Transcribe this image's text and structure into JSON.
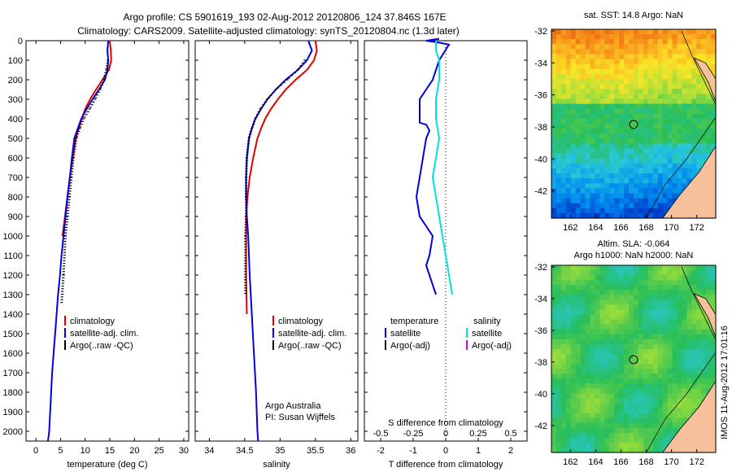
{
  "header": {
    "line1": "Argo profile: CS 5901619_193 02-Aug-2012 20120806_124 37.846S 167E",
    "line2": "Climatology: CARS2009. Satellite-adjusted climatology: synTS_20120804.nc (1.3d later)"
  },
  "side_stamp": "IMOS 11-Aug-2012 17:01:16",
  "chart_data": [
    {
      "type": "line",
      "id": "temperature-panel",
      "xlabel": "temperature (deg C)",
      "ylabel": "",
      "xlim": [
        -2,
        31
      ],
      "ylim": [
        2050,
        0
      ],
      "xticks": [
        0,
        5,
        10,
        15,
        20,
        25,
        30
      ],
      "yticks": [
        0,
        100,
        200,
        300,
        400,
        500,
        600,
        700,
        800,
        900,
        1000,
        1100,
        1200,
        1300,
        1400,
        1500,
        1600,
        1700,
        1800,
        1900,
        2000
      ],
      "legend": {
        "placement": "lower-center",
        "entries": [
          {
            "label": "climatology",
            "color": "#e00000"
          },
          {
            "label": "satellite-adj. clim.",
            "color": "#0000e0"
          },
          {
            "label": "Argo(..raw -QC)",
            "color": "#000000"
          }
        ]
      },
      "series": [
        {
          "name": "climatology",
          "color": "#e00000",
          "x": [
            15.0,
            15.2,
            15.3,
            14.8,
            13.5,
            12.2,
            11.0,
            10.0,
            9.3,
            8.7,
            8.1,
            7.5,
            6.9,
            6.4,
            5.9,
            5.4
          ],
          "y": [
            0,
            50,
            100,
            150,
            200,
            250,
            300,
            350,
            400,
            450,
            500,
            600,
            700,
            800,
            900,
            1000
          ]
        },
        {
          "name": "satellite-adj. clim.",
          "color": "#0000e0",
          "x": [
            14.7,
            14.6,
            14.5,
            14.7,
            14.5,
            14.0,
            12.8,
            11.5,
            10.3,
            9.2,
            8.5,
            7.8,
            7.3,
            6.9,
            6.4,
            6.0,
            5.6,
            5.2,
            4.9,
            4.5,
            4.2,
            3.9,
            3.6,
            3.3,
            3.1,
            2.9,
            2.7,
            2.6,
            2.5,
            2.4
          ],
          "y": [
            0,
            25,
            50,
            100,
            150,
            200,
            250,
            300,
            350,
            400,
            450,
            500,
            600,
            700,
            800,
            900,
            1000,
            1100,
            1200,
            1300,
            1400,
            1500,
            1600,
            1700,
            1800,
            1900,
            2000,
            2020,
            2040,
            2050
          ]
        },
        {
          "name": "Argo(..raw -QC)",
          "color": "#000000",
          "x": [
            14.6,
            14.3,
            13.8,
            13.0,
            12.0,
            10.9,
            9.7,
            8.9,
            8.2,
            7.6,
            7.2,
            6.8,
            6.4,
            6.0,
            5.6,
            5.2
          ],
          "y": [
            100,
            150,
            200,
            250,
            300,
            350,
            400,
            450,
            500,
            600,
            700,
            800,
            900,
            1000,
            1200,
            1350
          ]
        }
      ]
    },
    {
      "type": "line",
      "id": "salinity-panel",
      "xlabel": "salinity",
      "ylabel": "",
      "xlim": [
        33.8,
        36.1
      ],
      "ylim": [
        2050,
        0
      ],
      "xticks": [
        34,
        34.5,
        35,
        35.5,
        36
      ],
      "legend": {
        "placement": "lower-center",
        "entries": [
          {
            "label": "climatology",
            "color": "#e00000"
          },
          {
            "label": "satellite-adj. clim.",
            "color": "#0000e0"
          },
          {
            "label": "Argo(..raw -QC)",
            "color": "#000000"
          }
        ]
      },
      "annotation": [
        "Argo Australia",
        "PI: Susan Wijffels"
      ],
      "series": [
        {
          "name": "climatology",
          "color": "#e00000",
          "x": [
            35.5,
            35.52,
            35.48,
            35.38,
            35.22,
            35.08,
            34.97,
            34.87,
            34.79,
            34.73,
            34.68,
            34.62,
            34.57,
            34.54,
            34.52,
            34.52,
            34.52,
            34.53
          ],
          "y": [
            0,
            50,
            100,
            150,
            200,
            250,
            300,
            350,
            400,
            450,
            500,
            600,
            700,
            800,
            900,
            1000,
            1200,
            1400
          ]
        },
        {
          "name": "satellite-adj. clim.",
          "color": "#0000e0",
          "x": [
            35.4,
            35.45,
            35.38,
            35.25,
            35.08,
            34.94,
            34.82,
            34.73,
            34.65,
            34.6,
            34.56,
            34.53,
            34.52,
            34.52,
            34.53,
            34.55,
            34.57,
            34.6,
            34.63,
            34.66,
            34.68,
            34.69
          ],
          "y": [
            0,
            50,
            100,
            150,
            200,
            250,
            300,
            350,
            400,
            450,
            500,
            600,
            700,
            800,
            900,
            1000,
            1200,
            1400,
            1600,
            1800,
            2000,
            2050
          ]
        },
        {
          "name": "Argo(..raw -QC)",
          "color": "#000000",
          "x": [
            35.35,
            35.25,
            35.1,
            34.94,
            34.82,
            34.72,
            34.65,
            34.6,
            34.56,
            34.53,
            34.52,
            34.52,
            34.52,
            34.51,
            34.51
          ],
          "y": [
            100,
            150,
            200,
            250,
            300,
            350,
            400,
            450,
            500,
            600,
            700,
            800,
            900,
            1000,
            1300
          ]
        }
      ]
    },
    {
      "type": "line",
      "id": "difference-panel",
      "xlabel": "T difference from climatology",
      "top_axis_label": "S difference from climatology",
      "xlim": [
        -2.5,
        2.5
      ],
      "ylim": [
        2050,
        0
      ],
      "xticks_bottom": [
        {
          "v": -2,
          "t": "-2"
        },
        {
          "v": -1,
          "t": "-1"
        },
        {
          "v": 0,
          "t": "0"
        },
        {
          "v": 1,
          "t": "1"
        },
        {
          "v": 2,
          "t": "2"
        }
      ],
      "xticks_top": [
        {
          "v": -2,
          "t": "-0.5"
        },
        {
          "v": -1,
          "t": "-0.25"
        },
        {
          "v": 0,
          "t": "0"
        },
        {
          "v": 1,
          "t": "0.25"
        },
        {
          "v": 2,
          "t": "0.5"
        }
      ],
      "zero_line": 0,
      "legend": {
        "placement": "lower-center",
        "headers": [
          "temperature",
          "salinity"
        ],
        "entries": [
          {
            "label": "satellite",
            "color": "#0000e0"
          },
          {
            "label": "Argo(-adj)",
            "color": "#000000"
          },
          {
            "label": "satellite",
            "color": "#00e0e0"
          },
          {
            "label": "Argo(-adj)",
            "color": "#e000e0"
          }
        ]
      },
      "series": [
        {
          "name": "temperature satellite",
          "color": "#0000e0",
          "x": [
            -0.3,
            -0.4,
            -0.5,
            -0.6,
            -0.5,
            -0.4,
            -0.8,
            -0.9,
            -0.8,
            -0.7,
            -0.6,
            -0.5,
            -0.6,
            -0.8,
            -0.8,
            -0.8,
            -0.6,
            -0.4,
            -0.2,
            0.1,
            -0.2,
            -0.6,
            -0.2
          ],
          "y": [
            1300,
            1250,
            1200,
            1150,
            1100,
            1000,
            900,
            800,
            700,
            600,
            500,
            460,
            430,
            420,
            400,
            300,
            250,
            200,
            100,
            20,
            10,
            0,
            -10
          ]
        },
        {
          "name": "salinity satellite",
          "color": "#00e0e0",
          "x": [
            0.2,
            0.1,
            0.0,
            -0.1,
            -0.2,
            -0.3,
            -0.4,
            -0.3,
            -0.2,
            -0.3,
            -0.3,
            -0.2,
            -0.2,
            -0.3,
            -0.3
          ],
          "y": [
            1300,
            1200,
            1100,
            1000,
            900,
            800,
            700,
            600,
            500,
            400,
            300,
            200,
            100,
            50,
            0
          ]
        }
      ]
    }
  ],
  "maps": [
    {
      "id": "sst-map",
      "title": "sat. SST: 14.8 Argo: NaN",
      "lon_ticks": [
        162,
        164,
        166,
        168,
        170,
        172
      ],
      "lat_ticks": [
        -32,
        -34,
        -36,
        -38,
        -40,
        -42
      ],
      "lon_range": [
        160.5,
        173.5
      ],
      "lat_range": [
        -43.7,
        -31.9
      ],
      "marker": {
        "lon": 167.0,
        "lat": -37.846
      }
    },
    {
      "id": "sla-map",
      "title_line1": "Altim. SLA: -0.064",
      "title_line2": "Argo h1000: NaN h2000: NaN",
      "lon_ticks": [
        162,
        164,
        166,
        168,
        170,
        172
      ],
      "lat_ticks": [
        -32,
        -34,
        -36,
        -38,
        -40,
        -42
      ],
      "lon_range": [
        160.5,
        173.5
      ],
      "lat_range": [
        -43.7,
        -31.9
      ],
      "marker": {
        "lon": 167.0,
        "lat": -37.846
      }
    }
  ],
  "colors": {
    "land": "#f5c09a",
    "climatology": "#e00000",
    "satellite": "#0000e0",
    "argo": "#000000",
    "salinity_sat": "#00e0e0",
    "salinity_argo": "#e000e0"
  }
}
